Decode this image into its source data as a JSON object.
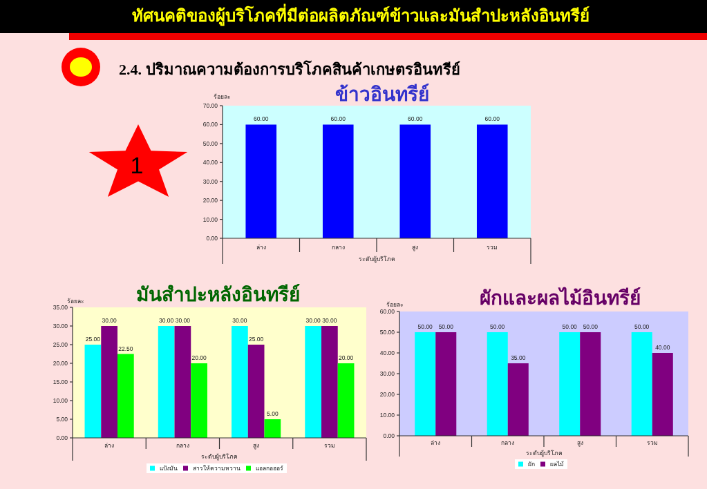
{
  "chart_data": [
    {
      "type": "other",
      "title": "ทัศนคติของผู้บริโภคที่มีต่อผลิตภัณฑ์ข้าวและมันสำปะหลังอินทรีย์",
      "subtitle": "2.4. ปริมาณความต้องการบริโภคสินค้าเกษตรอินทรีย์",
      "annotations": [
        "1"
      ]
    },
    {
      "type": "bar",
      "title": "ข้าวอินทรีย์",
      "ylabel": "ร้อยละ",
      "xlabel": "ระดับผู้บริโภค",
      "categories": [
        "ล่าง",
        "กลาง",
        "สูง",
        "รวม"
      ],
      "values": [
        60,
        60,
        60,
        60
      ],
      "color": "#0000ff",
      "value_labels": [
        "60.00",
        "60.00",
        "60.00",
        "60.00"
      ],
      "ylim": [
        0,
        70
      ],
      "yticks": [
        {
          "value": 0,
          "label": "0.00"
        },
        {
          "value": 10,
          "label": "10.00"
        },
        {
          "value": 20,
          "label": "20.00"
        },
        {
          "value": 30,
          "label": "30.00"
        },
        {
          "value": 40,
          "label": "40.00"
        },
        {
          "value": 50,
          "label": "50.00"
        },
        {
          "value": 60,
          "label": "60.00"
        },
        {
          "value": 70,
          "label": "70.00"
        }
      ]
    },
    {
      "type": "bar",
      "title": "มันสำปะหลังอินทรีย์",
      "ylabel": "ร้อยละ",
      "xlabel": "ระดับผู้บริโภค",
      "categories": [
        "ล่าง",
        "กลาง",
        "สูง",
        "รวม"
      ],
      "series": [
        {
          "name": "แป้งมัน",
          "color": "#00ffff",
          "values": [
            25,
            30,
            30,
            30
          ],
          "value_labels": [
            "25.00",
            "30.00",
            "30.00",
            "30.00"
          ]
        },
        {
          "name": "สารให้ความหวาน",
          "color": "#800080",
          "values": [
            30,
            30,
            25,
            30
          ],
          "value_labels": [
            "30.00",
            "30.00",
            "25.00",
            "30.00"
          ]
        },
        {
          "name": "แอลกอฮอร์",
          "color": "#00ff00",
          "values": [
            22.5,
            20,
            5,
            20
          ],
          "value_labels": [
            "22.50",
            "20.00",
            "5.00",
            "20.00"
          ]
        }
      ],
      "ylim": [
        0,
        35
      ],
      "yticks": [
        {
          "value": 0,
          "label": "0.00"
        },
        {
          "value": 5,
          "label": "5.00"
        },
        {
          "value": 10,
          "label": "10.00"
        },
        {
          "value": 15,
          "label": "15.00"
        },
        {
          "value": 20,
          "label": "20.00"
        },
        {
          "value": 25,
          "label": "25.00"
        },
        {
          "value": 30,
          "label": "30.00"
        },
        {
          "value": 35,
          "label": "35.00"
        }
      ],
      "legend": "bottom"
    },
    {
      "type": "bar",
      "title": "ผักและผลไม้อินทรีย์",
      "ylabel": "ร้อยละ",
      "xlabel": "ระดับผู้บริโภค",
      "categories": [
        "ล่าง",
        "กลาง",
        "สูง",
        "รวม"
      ],
      "series": [
        {
          "name": "ผัก",
          "color": "#00ffff",
          "values": [
            50,
            50,
            50,
            50
          ],
          "value_labels": [
            "50.00",
            "50.00",
            "50.00",
            "50.00"
          ]
        },
        {
          "name": "ผลไม้",
          "color": "#800080",
          "values": [
            50,
            35,
            50,
            40
          ],
          "value_labels": [
            "50.00",
            "35.00",
            "50.00",
            "40.00"
          ]
        }
      ],
      "ylim": [
        0,
        60
      ],
      "yticks": [
        {
          "value": 0,
          "label": "0.00"
        },
        {
          "value": 10,
          "label": "10.00"
        },
        {
          "value": 20,
          "label": "20.00"
        },
        {
          "value": 30,
          "label": "30.00"
        },
        {
          "value": 40,
          "label": "40.00"
        },
        {
          "value": 50,
          "label": "50.00"
        },
        {
          "value": 60,
          "label": "60.00"
        }
      ],
      "legend": "bottom"
    }
  ]
}
